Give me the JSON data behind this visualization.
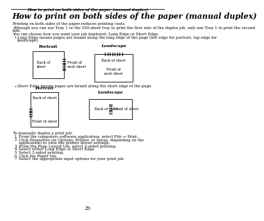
{
  "header_text": "How to print on both sides of the paper (manual duplex)",
  "main_title": "How to print on both sides of the paper (manual duplex)",
  "para1": "Printing on both sides of the paper reduces printing costs.",
  "para2a": "Although you can use Tray 1 or the 550-sheet tray to print the first side of the duplex job, only use Tray 1 to print the second",
  "para2b": "side.",
  "para3": "You can choose how you want your job duplexed: Long Edge or Short Edge.",
  "bullet1a": "Long Edge means pages are bound along the long edge of the page (left edge for portrait, top edge for",
  "bullet1b": "landscape).",
  "bullet2": "Short Edge means pages are bound along the short edge of the page.",
  "portrait_label1": "Portrait",
  "landscape_label1": "Landscape",
  "portrait_label2": "Portrait",
  "landscape_label2": "Landscape",
  "manual_duplex_intro": "To manually duplex a print job:",
  "step1": "From the computers software application, select File → Print.",
  "step2": "Click Properties (or Options, Printer, or Setup, depending on the application) to view the printer driver settings.",
  "step2b": "depending on the application) to view the printer driver settings.",
  "step3": "From the Page Layout tab, select 2-sided printing.",
  "step4": "Select either Long Edge or Short Edge.",
  "step5": "Select 2-sided printing.",
  "step6": "Click the Paper tab.",
  "step7": "Select the appropriate input options for your print job.",
  "page_number": "29",
  "bg_color": "#ffffff"
}
